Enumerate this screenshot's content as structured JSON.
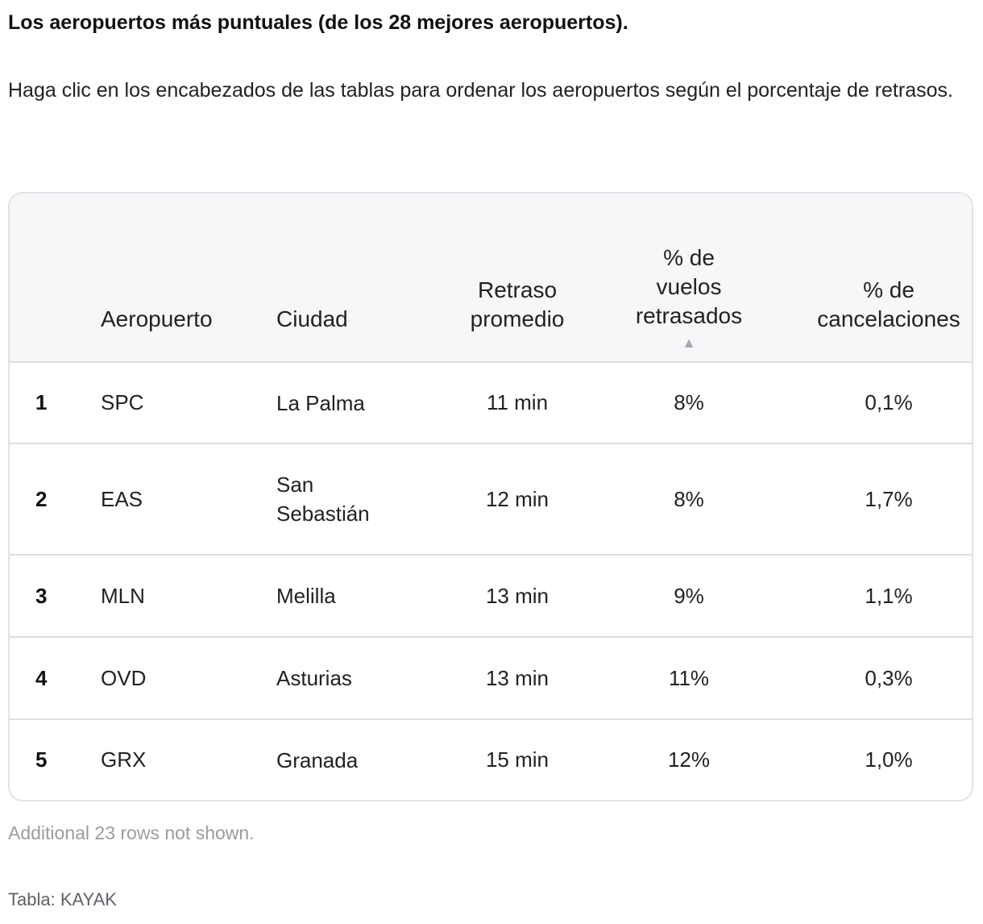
{
  "title": "Los aeropuertos más puntuales (de los 28 mejores aeropuertos).",
  "description": "Haga clic en los encabezados de las tablas para ordenar los aeropuertos según el porcentaje de retrasos.",
  "table": {
    "headers": {
      "rank": "",
      "airport": "Aeropuerto",
      "city": "Ciudad",
      "avg_delay": "Retraso promedio",
      "pct_delayed": "% de vuelos retrasados",
      "pct_cancel": "% de cancelaciones"
    },
    "sort_indicator": "▲",
    "rows": [
      {
        "rank": "1",
        "airport": "SPC",
        "city": "La Palma",
        "avg_delay": "11 min",
        "pct_delayed": "8%",
        "pct_cancel": "0,1%"
      },
      {
        "rank": "2",
        "airport": "EAS",
        "city": "San Sebastián",
        "avg_delay": "12 min",
        "pct_delayed": "8%",
        "pct_cancel": "1,7%"
      },
      {
        "rank": "3",
        "airport": "MLN",
        "city": "Melilla",
        "avg_delay": "13 min",
        "pct_delayed": "9%",
        "pct_cancel": "1,1%"
      },
      {
        "rank": "4",
        "airport": "OVD",
        "city": "Asturias",
        "avg_delay": "13 min",
        "pct_delayed": "11%",
        "pct_cancel": "0,3%"
      },
      {
        "rank": "5",
        "airport": "GRX",
        "city": "Granada",
        "avg_delay": "15 min",
        "pct_delayed": "12%",
        "pct_cancel": "1,0%"
      }
    ]
  },
  "note": "Additional 23 rows not shown.",
  "source": "Tabla: KAYAK"
}
